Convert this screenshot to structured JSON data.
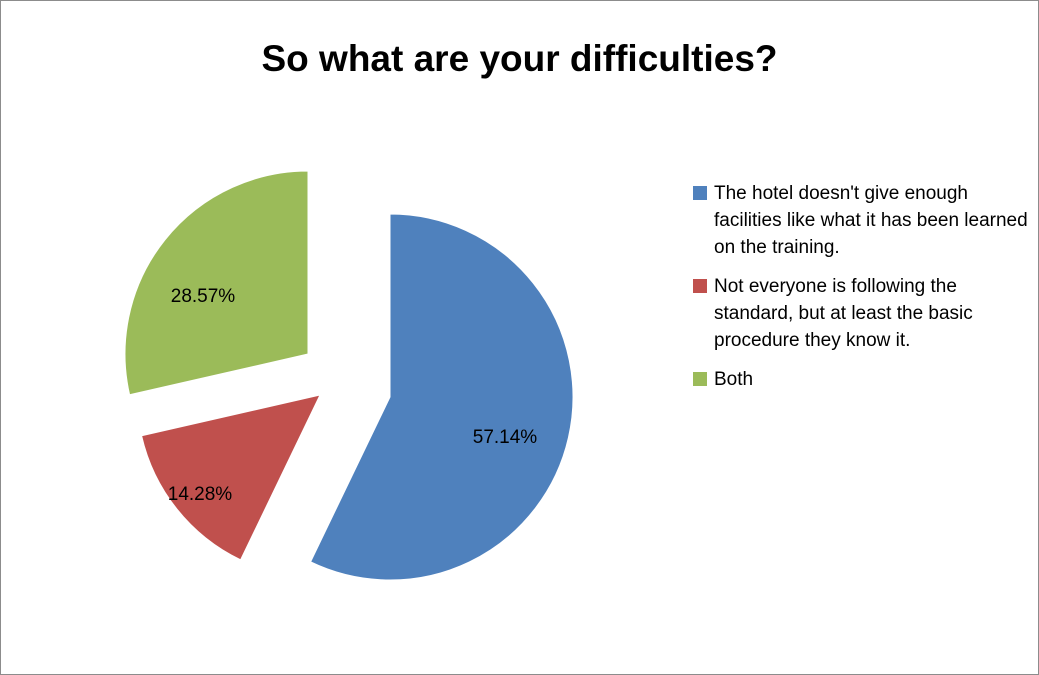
{
  "chart_data": {
    "type": "pie",
    "title": "So what are your difficulties?",
    "slices": [
      {
        "name": "The hotel doesn't give enough facilities like what it has been learned on the training.",
        "value": 57.14,
        "label": "57.14%",
        "color": "#4f81bd"
      },
      {
        "name": "Not everyone is following the standard, but at least the basic procedure they know it.",
        "value": 14.28,
        "label": "14.28%",
        "color": "#c0504d"
      },
      {
        "name": "Both",
        "value": 28.57,
        "label": "28.57%",
        "color": "#9bbb59"
      }
    ],
    "exploded": true,
    "legend_position": "right"
  }
}
